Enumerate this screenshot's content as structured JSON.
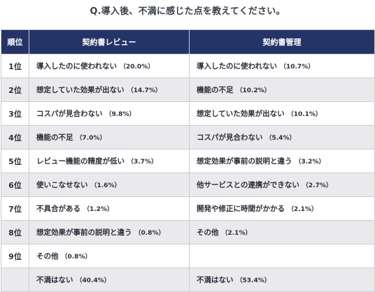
{
  "question": "Q.導入後、不満に感じた点を教えてください。",
  "headers": {
    "rank": "順位",
    "review": "契約書レビュー",
    "management": "契約書管理"
  },
  "rows": [
    {
      "rank": "1位",
      "review": {
        "label": "導入したのに使われない",
        "pct": "（20.0%）"
      },
      "management": {
        "label": "導入したのに使われない",
        "pct": "（10.7%）"
      }
    },
    {
      "rank": "2位",
      "review": {
        "label": "想定していた効果が出ない",
        "pct": "（14.7%）"
      },
      "management": {
        "label": "機能の不足",
        "pct": "（10.2%）"
      }
    },
    {
      "rank": "3位",
      "review": {
        "label": "コスパが見合わない",
        "pct": "（9.8%）"
      },
      "management": {
        "label": "想定していた効果が出ない",
        "pct": "（10.1%）"
      }
    },
    {
      "rank": "4位",
      "review": {
        "label": "機能の不足",
        "pct": "（7.0%）"
      },
      "management": {
        "label": "コスパが見合わない",
        "pct": "（5.4%）"
      }
    },
    {
      "rank": "5位",
      "review": {
        "label": "レビュー機能の精度が低い",
        "pct": "（3.7%）"
      },
      "management": {
        "label": "想定効果が事前の説明と違う",
        "pct": "（3.2%）"
      }
    },
    {
      "rank": "6位",
      "review": {
        "label": "使いこなせない",
        "pct": "（1.6%）"
      },
      "management": {
        "label": "他サービスとの連携ができない",
        "pct": "（2.7%）"
      }
    },
    {
      "rank": "7位",
      "review": {
        "label": "不具合がある",
        "pct": "（1.2%）"
      },
      "management": {
        "label": "開発や修正に時間がかかる",
        "pct": "（2.1%）"
      }
    },
    {
      "rank": "8位",
      "review": {
        "label": "想定効果が事前の説明と違う",
        "pct": "（0.8%）"
      },
      "management": {
        "label": "その他",
        "pct": "（2.1%）"
      }
    },
    {
      "rank": "9位",
      "review": {
        "label": "その他",
        "pct": "（0.8%）"
      },
      "management": {
        "label": "",
        "pct": ""
      }
    },
    {
      "rank": "",
      "review": {
        "label": "不満はない",
        "pct": "（40.4%）"
      },
      "management": {
        "label": "不満はない",
        "pct": "（53.4%）"
      }
    }
  ],
  "colors": {
    "header_bg": "#253466",
    "row_alt_bg": "#eaeaec",
    "border": "#c9ccd3"
  }
}
